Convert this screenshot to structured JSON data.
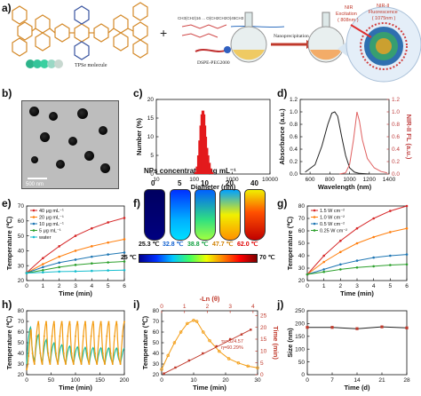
{
  "panels": [
    {
      "id": "a",
      "label": "a)"
    },
    {
      "id": "b",
      "label": "b)"
    },
    {
      "id": "c",
      "label": "c)"
    },
    {
      "id": "d",
      "label": "d)"
    },
    {
      "id": "e",
      "label": "e)"
    },
    {
      "id": "f",
      "label": "f)"
    },
    {
      "id": "g",
      "label": "g)"
    },
    {
      "id": "h",
      "label": "h)"
    },
    {
      "id": "i",
      "label": "i)"
    },
    {
      "id": "j",
      "label": "j)"
    }
  ],
  "scheme": {
    "tpss_label": "TPSe molecule",
    "dspe_label": "DSPE-PEG2000",
    "nanoprecip_label": "Nanoprecipitation",
    "nir_excitation": "NIR Excitation\n( 808nm )",
    "nir_fluorescence": "NIR-II\nFluorescence\n( 1075nm )",
    "polymer_formula": "CH3(CH2)16 ... O(CH2CH2O)45CH3"
  },
  "tem": {
    "scale_text": "500 nm"
  },
  "panel_f": {
    "title": "NPs concentration μg mL⁻¹",
    "concentrations": [
      "0",
      "5",
      "10",
      "20",
      "40"
    ],
    "temps": [
      "25.3 ℃",
      "32.8 ℃",
      "38.8 ℃",
      "47.7 ℃",
      "62.0 ℃"
    ],
    "temp_colors": [
      "#111111",
      "#1060d0",
      "#10a040",
      "#d08000",
      "#e00000"
    ],
    "cbar_min": "25 ℃",
    "cbar_max": "70 ℃"
  },
  "chart_data": [
    {
      "id": "c",
      "type": "bar",
      "title": "",
      "xlabel": "Diameter  (nm)",
      "ylabel": "Number (%)",
      "xscale": "log",
      "xlim": [
        10,
        10000
      ],
      "ylim": [
        0,
        20
      ],
      "xticks": [
        10,
        100,
        1000,
        10000
      ],
      "yticks": [
        0,
        5,
        10,
        15,
        20
      ],
      "bars": [
        [
          110,
          0.5
        ],
        [
          120,
          2
        ],
        [
          130,
          5
        ],
        [
          140,
          9
        ],
        [
          150,
          13
        ],
        [
          160,
          16
        ],
        [
          170,
          17
        ],
        [
          180,
          16
        ],
        [
          190,
          13
        ],
        [
          200,
          10
        ],
        [
          215,
          7
        ],
        [
          230,
          5
        ],
        [
          250,
          3
        ],
        [
          270,
          1.5
        ],
        [
          295,
          0.5
        ]
      ],
      "color": "#e31a1c"
    },
    {
      "id": "d",
      "type": "line",
      "title": "",
      "xlabel": "Wavelength (nm)",
      "ylabel": "Absorbance (a.u.)",
      "y2label": "NIR-II FL (a.u.)",
      "xlim": [
        500,
        1400
      ],
      "ylim": [
        0,
        1.2
      ],
      "xticks": [
        600,
        800,
        1000,
        1200,
        1400
      ],
      "yticks": [
        0,
        0.2,
        0.4,
        0.6,
        0.8,
        1.0,
        1.2
      ],
      "y2ticks": [
        0,
        0.2,
        0.4,
        0.6,
        0.8,
        1.0,
        1.2
      ],
      "series": [
        {
          "values": [
            [
              550,
              0.03
            ],
            [
              650,
              0.15
            ],
            [
              720,
              0.45
            ],
            [
              780,
              0.8
            ],
            [
              820,
              0.98
            ],
            [
              850,
              1.0
            ],
            [
              880,
              0.93
            ],
            [
              920,
              0.6
            ],
            [
              960,
              0.3
            ],
            [
              1000,
              0.1
            ],
            [
              1050,
              0.03
            ],
            [
              1100,
              0.01
            ],
            [
              1200,
              0
            ]
          ],
          "color": "#222222"
        },
        {
          "values": [
            [
              900,
              0
            ],
            [
              960,
              0.02
            ],
            [
              1000,
              0.15
            ],
            [
              1040,
              0.55
            ],
            [
              1075,
              1.0
            ],
            [
              1100,
              0.85
            ],
            [
              1130,
              0.55
            ],
            [
              1180,
              0.25
            ],
            [
              1250,
              0.1
            ],
            [
              1320,
              0.04
            ],
            [
              1380,
              0.02
            ]
          ],
          "color": "#e06060"
        }
      ]
    },
    {
      "id": "e",
      "type": "line",
      "title": "",
      "xlabel": "Time (min)",
      "ylabel": "Temperature (℃)",
      "xlim": [
        0,
        6
      ],
      "ylim": [
        20,
        70
      ],
      "xticks": [
        0,
        1,
        2,
        3,
        4,
        5,
        6
      ],
      "yticks": [
        20,
        30,
        40,
        50,
        60,
        70
      ],
      "series": [
        {
          "name": "40 μg mL⁻¹",
          "values": [
            25.3,
            35,
            43,
            50,
            55,
            59,
            62
          ],
          "color": "#d62728"
        },
        {
          "name": "20 μg mL⁻¹",
          "values": [
            25.2,
            31,
            36,
            40,
            43,
            45.5,
            47.7
          ],
          "color": "#ff7f0e"
        },
        {
          "name": "10 μg mL⁻¹",
          "values": [
            25.1,
            29,
            32,
            34,
            36,
            37.5,
            38.8
          ],
          "color": "#1f77b4"
        },
        {
          "name": "5 μg mL⁻¹",
          "values": [
            25,
            27,
            29,
            30.5,
            31.5,
            32.2,
            32.8
          ],
          "color": "#2ca02c"
        },
        {
          "name": "water",
          "values": [
            25,
            25.5,
            26,
            26.2,
            26.5,
            26.8,
            27
          ],
          "color": "#17becf"
        }
      ]
    },
    {
      "id": "g",
      "type": "line",
      "title": "",
      "xlabel": "Time (min)",
      "ylabel": "Temperature (℃)",
      "xlim": [
        0,
        6
      ],
      "ylim": [
        20,
        80
      ],
      "xticks": [
        0,
        1,
        2,
        3,
        4,
        5,
        6
      ],
      "yticks": [
        20,
        30,
        40,
        50,
        60,
        70,
        80
      ],
      "series": [
        {
          "name": "1.5 W cm⁻²",
          "values": [
            25,
            40,
            52,
            62,
            70,
            76,
            80
          ],
          "color": "#d62728"
        },
        {
          "name": "1.0 W cm⁻²",
          "values": [
            25,
            35,
            43,
            50,
            55,
            59,
            62
          ],
          "color": "#ff7f0e"
        },
        {
          "name": "0.5 W cm⁻²",
          "values": [
            25,
            29,
            33,
            36,
            38.5,
            40,
            41
          ],
          "color": "#1f77b4"
        },
        {
          "name": "0.25 W cm⁻²",
          "values": [
            25,
            27,
            29,
            30.5,
            31.5,
            32.5,
            33
          ],
          "color": "#2ca02c"
        }
      ]
    },
    {
      "id": "h",
      "type": "line",
      "title": "",
      "xlabel": "Time (min)",
      "ylabel": "Temperature (℃)",
      "xlim": [
        0,
        200
      ],
      "ylim": [
        20,
        80
      ],
      "xticks": [
        0,
        50,
        100,
        150,
        200
      ],
      "yticks": [
        20,
        30,
        40,
        50,
        60,
        70,
        80
      ],
      "series": [
        {
          "values": "oscillating heating/cooling cycles, peaks ~70, troughs ~30, period ~16 min",
          "color": "#f39c12"
        },
        {
          "values": "oscillating cycles, first peak ~70 then decaying to ~45, troughs ~30",
          "color": "#1abc9c"
        }
      ]
    },
    {
      "id": "i",
      "type": "line",
      "title": "",
      "xlabel": "Time (min)",
      "ylabel": "Temperature (℃)",
      "x2label": "-Ln (θ)",
      "y2label": "Time (min)",
      "xlim": [
        0,
        30
      ],
      "ylim": [
        20,
        80
      ],
      "xticks": [
        0,
        10,
        20,
        30
      ],
      "yticks": [
        20,
        30,
        40,
        50,
        60,
        70,
        80
      ],
      "x2ticks": [
        0,
        1,
        2,
        3,
        4
      ],
      "y2ticks": [
        0,
        5,
        10,
        15,
        20,
        25
      ],
      "annotations": [
        "τs=324.57",
        "η=60.29%"
      ],
      "series": [
        {
          "values": [
            [
              0,
              25
            ],
            [
              2,
              38
            ],
            [
              4,
              50
            ],
            [
              6,
              60
            ],
            [
              8,
              68
            ],
            [
              10,
              71
            ],
            [
              11,
              70
            ],
            [
              13,
              60
            ],
            [
              15,
              52
            ],
            [
              18,
              42
            ],
            [
              21,
              35
            ],
            [
              24,
              31
            ],
            [
              27,
              28
            ],
            [
              30,
              26.5
            ]
          ],
          "color": "#f39c12"
        },
        {
          "values": [
            [
              0.1,
              0.5
            ],
            [
              0.6,
              3
            ],
            [
              1.2,
              6
            ],
            [
              1.8,
              9
            ],
            [
              2.4,
              12
            ],
            [
              3.0,
              15
            ],
            [
              3.5,
              17
            ],
            [
              3.9,
              19
            ]
          ],
          "color": "#c0392b"
        }
      ]
    },
    {
      "id": "j",
      "type": "line",
      "title": "",
      "xlabel": "Time (d)",
      "ylabel": "Size (nm)",
      "xlim": [
        0,
        28
      ],
      "ylim": [
        0,
        250
      ],
      "xticks": [
        0,
        7,
        14,
        21,
        28
      ],
      "yticks": [
        0,
        50,
        100,
        150,
        200,
        250
      ],
      "series": [
        {
          "values": [
            [
              0,
              185
            ],
            [
              7,
              185
            ],
            [
              14,
              180
            ],
            [
              21,
              187
            ],
            [
              28,
              183
            ]
          ],
          "color": "#222222"
        }
      ]
    }
  ]
}
